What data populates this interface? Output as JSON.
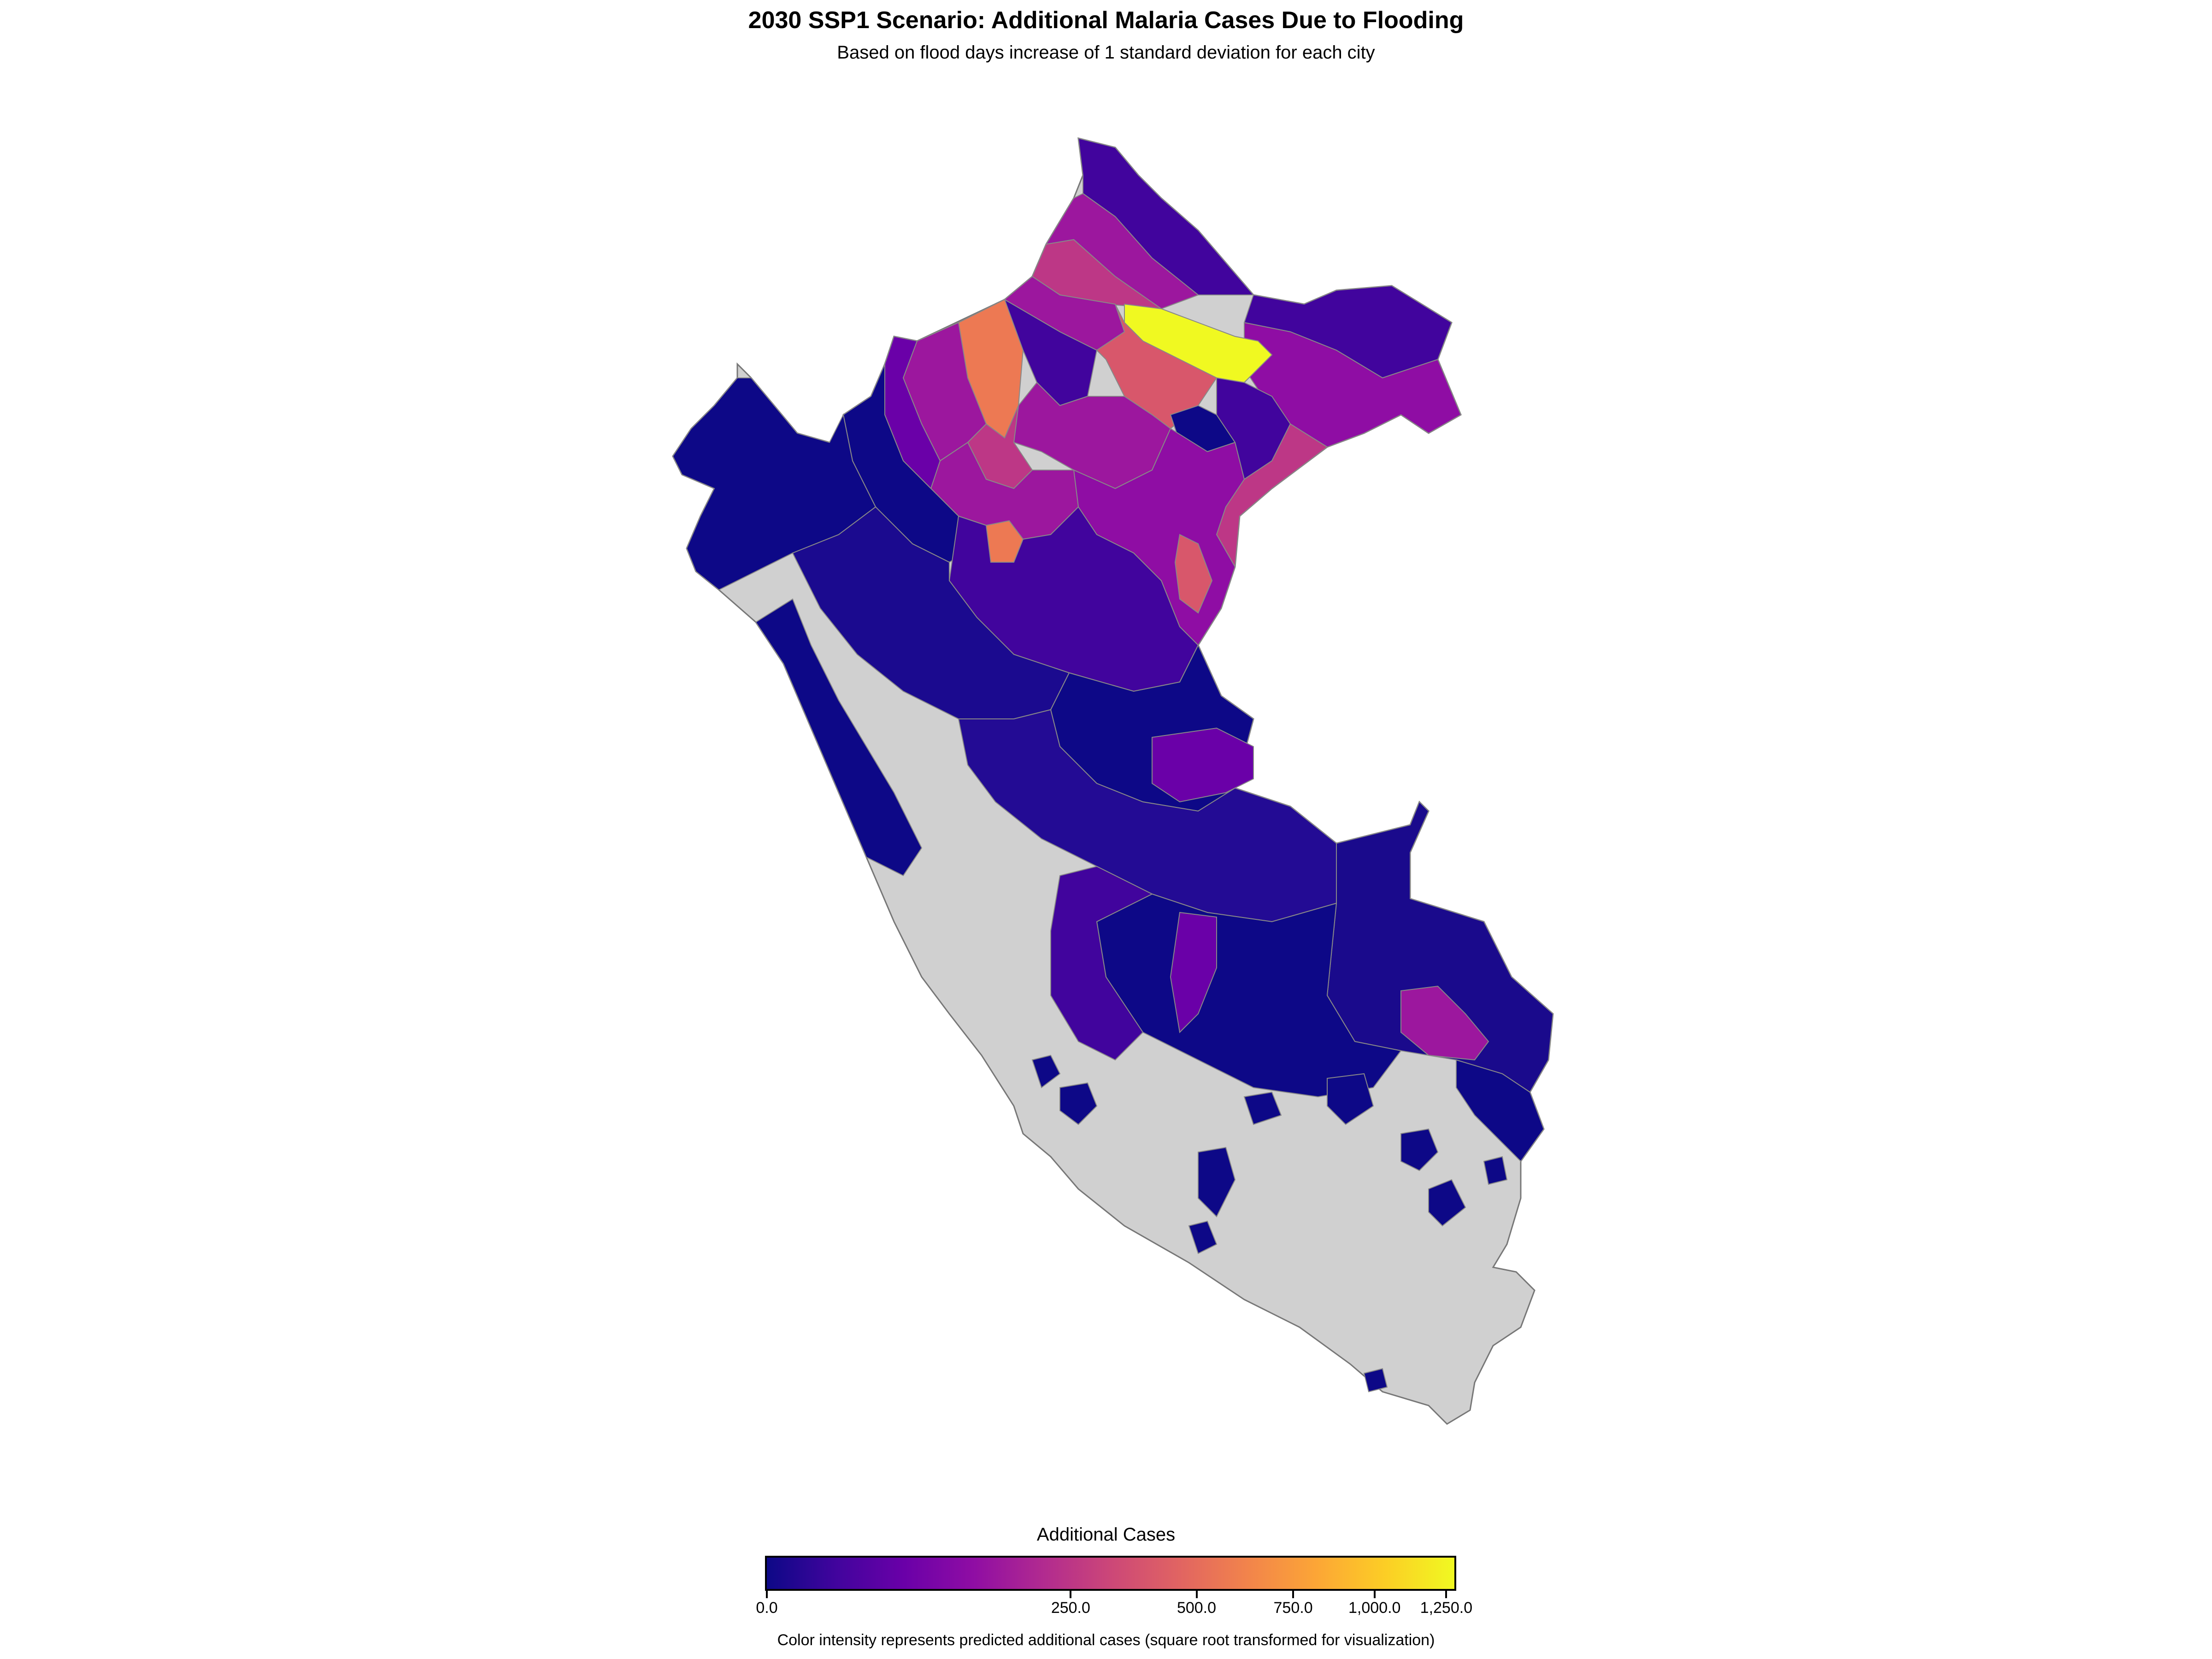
{
  "title": "2030 SSP1 Scenario: Additional Malaria Cases Due to Flooding",
  "subtitle": "Based on flood days increase of 1 standard deviation for each city",
  "legend": {
    "title": "Additional Cases",
    "colormap": "plasma",
    "scale": "sqrt",
    "range": [
      0,
      1280
    ],
    "colors": [
      "#0d0887",
      "#41049d",
      "#6a00a8",
      "#8f0da4",
      "#b12a90",
      "#cc4778",
      "#e16462",
      "#f2844b",
      "#fca636",
      "#fcce25",
      "#f0f921"
    ],
    "ticks": [
      {
        "value": 0,
        "label": "0.0"
      },
      {
        "value": 250,
        "label": "250.0"
      },
      {
        "value": 500,
        "label": "500.0"
      },
      {
        "value": 750,
        "label": "750.0"
      },
      {
        "value": 1000,
        "label": "1,000.0"
      },
      {
        "value": 1250,
        "label": "1,250.0"
      }
    ]
  },
  "caption": "Color intensity represents predicted additional cases (square root transformed for visualization)",
  "map_colors": {
    "no_data": "#d0d0d0",
    "border": "#888888",
    "very_low": "#0d0887",
    "low": "#41049d",
    "purple": "#6a00a8",
    "magenta": "#9c179e",
    "pink": "#bd3786",
    "salmon": "#d8576b",
    "orange": "#ed7953",
    "yellow": "#f0f921"
  }
}
